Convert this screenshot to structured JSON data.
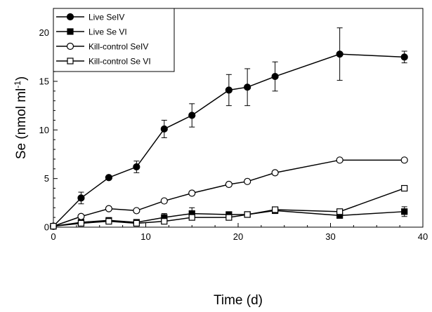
{
  "chart_data": {
    "type": "line",
    "xlabel": "Time (d)",
    "ylabel": "Se (nmol ml",
    "ylabel_superscript": "-1",
    "ylabel_close": ")",
    "xlim": [
      0,
      40
    ],
    "ylim": [
      0,
      22.5
    ],
    "xticks": [
      0,
      10,
      20,
      30,
      40
    ],
    "yticks": [
      0,
      5,
      10,
      15,
      20
    ],
    "grid": false,
    "legend_position": "top-left",
    "series": [
      {
        "name": "Live SeIV",
        "marker": "filled-circle",
        "x": [
          0,
          3,
          6,
          9,
          12,
          15,
          19,
          21,
          24,
          31,
          38
        ],
        "y": [
          0.1,
          3.0,
          5.1,
          6.2,
          10.1,
          11.5,
          14.1,
          14.4,
          15.5,
          17.8,
          17.5
        ],
        "err": [
          0,
          0.6,
          0,
          0.6,
          0.9,
          1.2,
          1.6,
          1.9,
          1.5,
          2.7,
          0.6
        ]
      },
      {
        "name": "Live Se VI",
        "marker": "filled-square",
        "x": [
          0,
          3,
          6,
          9,
          12,
          15,
          19,
          21,
          24,
          31,
          38
        ],
        "y": [
          0.1,
          0.5,
          0.7,
          0.5,
          1.0,
          1.4,
          1.3,
          1.3,
          1.7,
          1.2,
          1.6
        ],
        "err": [
          0,
          0.2,
          0.2,
          0.2,
          0.4,
          0.6,
          0.2,
          0.2,
          0.3,
          0,
          0.5
        ]
      },
      {
        "name": "Kill-control SeIV",
        "marker": "open-circle",
        "x": [
          0,
          3,
          6,
          9,
          12,
          15,
          19,
          21,
          24,
          31,
          38
        ],
        "y": [
          0.1,
          1.1,
          1.9,
          1.7,
          2.7,
          3.5,
          4.4,
          4.7,
          5.6,
          6.9,
          6.9
        ],
        "err": [
          0,
          0,
          0,
          0,
          0,
          0,
          0,
          0,
          0,
          0,
          0
        ]
      },
      {
        "name": "Kill-control Se VI",
        "marker": "open-square",
        "x": [
          0,
          3,
          6,
          9,
          12,
          15,
          19,
          21,
          24,
          31,
          38
        ],
        "y": [
          0.1,
          0.4,
          0.6,
          0.4,
          0.6,
          1.0,
          1.0,
          1.3,
          1.8,
          1.6,
          4.0
        ],
        "err": [
          0,
          0,
          0,
          0,
          0,
          0.2,
          0,
          0,
          0,
          0,
          0
        ]
      }
    ]
  }
}
